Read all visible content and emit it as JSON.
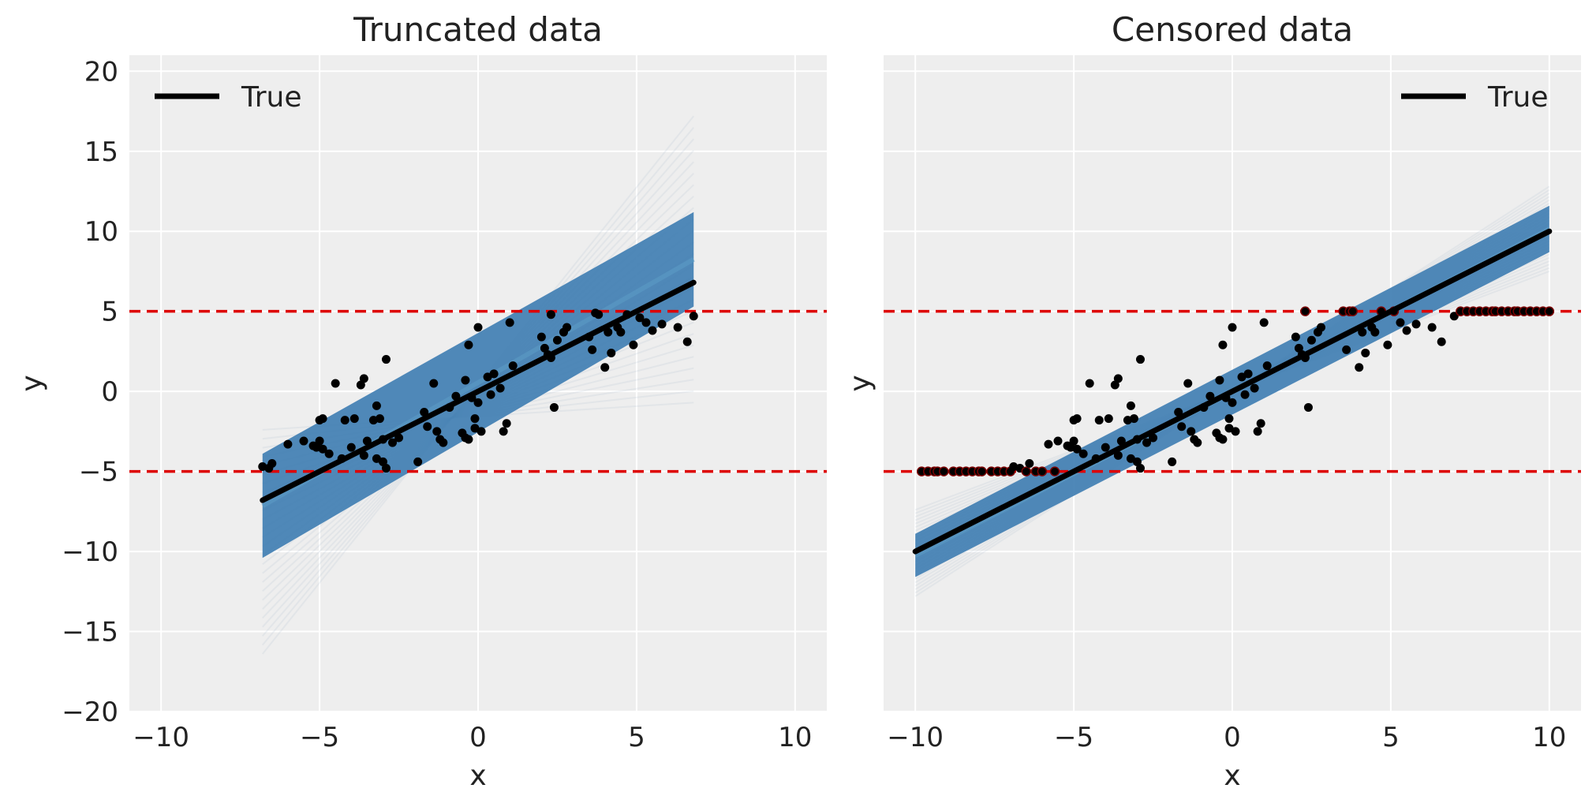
{
  "colors": {
    "panel_bg": "#eeeeee",
    "grid": "#ffffff",
    "posterior_band": "#4682b4",
    "true_line": "#000000",
    "bounds": "#dd0000",
    "points": "#000000"
  },
  "chart_data": [
    {
      "type": "scatter",
      "title": "Truncated data",
      "xlabel": "x",
      "ylabel": "y",
      "xlim": [
        -11,
        11
      ],
      "ylim": [
        -20,
        21
      ],
      "xticks": [
        -10,
        -5,
        0,
        5,
        10
      ],
      "yticks": [
        -20,
        -15,
        -10,
        -5,
        0,
        5,
        10,
        15,
        20
      ],
      "xtick_labels": [
        "−10",
        "−5",
        "0",
        "5",
        "10"
      ],
      "ytick_labels": [
        "−20",
        "−15",
        "−10",
        "−5",
        "0",
        "5",
        "10",
        "15",
        "20"
      ],
      "grid": true,
      "legend": {
        "position": "top-left",
        "entries": [
          "True"
        ]
      },
      "bounds": [
        5,
        -5
      ],
      "true_line": {
        "name": "True",
        "x": [
          -6.8,
          6.8
        ],
        "y": [
          -6.8,
          6.8
        ]
      },
      "posterior_band": {
        "x": [
          -6.8,
          6.8
        ],
        "upper_left": -3.9,
        "lower_left": -10.4,
        "upper_right": 11.2,
        "lower_right": 5.3
      },
      "points": {
        "x": [
          -6.8,
          -6.6,
          -6.5,
          -6.0,
          -5.5,
          -5.2,
          -5.0,
          -5.0,
          -4.9,
          -5.1,
          -4.9,
          -4.7,
          -4.5,
          -4.3,
          -4.2,
          -4.0,
          -3.9,
          -3.7,
          -3.6,
          -3.6,
          -3.5,
          -3.3,
          -3.2,
          -3.2,
          -3.1,
          -3.0,
          -3.0,
          -2.9,
          -2.9,
          -2.7,
          -2.5,
          -1.9,
          -1.7,
          -1.6,
          -1.4,
          -1.3,
          -1.2,
          -1.1,
          -0.9,
          -0.7,
          -0.5,
          -0.4,
          -0.4,
          -0.3,
          -0.3,
          -0.2,
          -0.1,
          -0.1,
          0.0,
          0.0,
          0.1,
          0.3,
          0.4,
          0.5,
          0.7,
          0.8,
          0.9,
          1.0,
          1.1,
          2.0,
          2.1,
          2.2,
          2.3,
          2.3,
          2.4,
          2.5,
          2.7,
          2.8,
          3.5,
          3.6,
          3.7,
          3.8,
          4.0,
          4.1,
          4.2,
          4.4,
          4.5,
          4.7,
          4.9,
          5.1,
          5.3,
          5.5,
          5.8,
          6.3,
          6.6,
          6.8
        ],
        "y": [
          -4.7,
          -4.8,
          -4.5,
          -3.3,
          -3.1,
          -3.4,
          -1.8,
          -3.1,
          -1.7,
          -3.5,
          -3.6,
          -3.9,
          0.5,
          -4.2,
          -1.8,
          -3.5,
          -1.7,
          0.4,
          -4.0,
          0.8,
          -3.1,
          -1.8,
          -4.2,
          -0.9,
          -1.7,
          -4.4,
          -3.0,
          2.0,
          -4.8,
          -3.2,
          -2.9,
          -4.4,
          -1.3,
          -2.2,
          0.5,
          -2.5,
          -3.0,
          -3.2,
          -1.0,
          -0.3,
          -2.6,
          -2.9,
          0.7,
          -3.0,
          2.9,
          -0.4,
          -1.7,
          -2.3,
          -0.7,
          4.0,
          -2.5,
          0.9,
          -0.2,
          1.1,
          0.2,
          -2.5,
          -2.0,
          4.3,
          1.6,
          3.4,
          2.7,
          2.3,
          2.1,
          4.8,
          -1.0,
          3.2,
          3.7,
          4.0,
          3.4,
          2.6,
          4.9,
          4.8,
          1.5,
          3.7,
          2.4,
          4.0,
          3.7,
          4.8,
          2.9,
          4.6,
          4.3,
          3.8,
          4.2,
          4.0,
          3.1,
          4.7
        ]
      }
    },
    {
      "type": "scatter",
      "title": "Censored data",
      "xlabel": "x",
      "ylabel": "y",
      "xlim": [
        -11,
        11
      ],
      "ylim": [
        -20,
        21
      ],
      "xticks": [
        -10,
        -5,
        0,
        5,
        10
      ],
      "yticks": [
        -20,
        -15,
        -10,
        -5,
        0,
        5,
        10,
        15,
        20
      ],
      "xtick_labels": [
        "−10",
        "−5",
        "0",
        "5",
        "10"
      ],
      "grid": true,
      "legend": {
        "position": "top-right",
        "entries": [
          "True"
        ]
      },
      "bounds": [
        5,
        -5
      ],
      "true_line": {
        "name": "True",
        "x": [
          -10,
          10
        ],
        "y": [
          -10,
          10
        ]
      },
      "posterior_band": {
        "x": [
          -10,
          10
        ],
        "upper_left": -8.9,
        "lower_left": -11.6,
        "upper_right": 11.6,
        "lower_right": 8.7
      },
      "points": {
        "x": [
          -9.8,
          -9.6,
          -9.4,
          -9.3,
          -9.1,
          -8.8,
          -8.6,
          -8.4,
          -8.2,
          -8.0,
          -7.9,
          -7.6,
          -7.4,
          -7.2,
          -7.0,
          -6.9,
          -6.7,
          -6.5,
          -6.4,
          -6.2,
          -6.0,
          -5.8,
          -5.6,
          -5.5,
          -5.2,
          -5.0,
          -5.0,
          -4.9,
          -5.1,
          -4.9,
          -4.7,
          -4.5,
          -4.3,
          -4.2,
          -4.0,
          -3.9,
          -3.7,
          -3.6,
          -3.6,
          -3.5,
          -3.3,
          -3.2,
          -3.2,
          -3.1,
          -3.0,
          -3.0,
          -2.9,
          -2.9,
          -2.7,
          -2.5,
          -1.9,
          -1.7,
          -1.6,
          -1.4,
          -1.3,
          -1.2,
          -1.1,
          -0.9,
          -0.7,
          -0.5,
          -0.4,
          -0.4,
          -0.3,
          -0.3,
          -0.2,
          -0.1,
          -0.1,
          0.0,
          0.0,
          0.1,
          0.3,
          0.4,
          0.5,
          0.7,
          0.8,
          0.9,
          1.0,
          1.1,
          2.0,
          2.1,
          2.2,
          2.3,
          2.3,
          2.4,
          2.5,
          2.7,
          2.8,
          3.5,
          3.6,
          3.7,
          3.8,
          4.0,
          4.1,
          4.2,
          4.4,
          4.5,
          4.7,
          4.9,
          5.1,
          5.3,
          5.5,
          5.8,
          6.3,
          6.6,
          7.0,
          7.2,
          7.4,
          7.6,
          7.8,
          8.0,
          8.2,
          8.3,
          8.5,
          8.7,
          8.9,
          9.0,
          9.2,
          9.4,
          9.6,
          9.8,
          10.0
        ],
        "y": [
          -5.0,
          -5.0,
          -5.0,
          -5.0,
          -5.0,
          -5.0,
          -5.0,
          -5.0,
          -5.0,
          -5.0,
          -5.0,
          -5.0,
          -5.0,
          -5.0,
          -5.0,
          -4.7,
          -4.8,
          -5.0,
          -4.5,
          -5.0,
          -5.0,
          -3.3,
          -5.0,
          -3.1,
          -3.4,
          -1.8,
          -3.1,
          -1.7,
          -3.5,
          -3.6,
          -3.9,
          0.5,
          -4.2,
          -1.8,
          -3.5,
          -1.7,
          0.4,
          -4.0,
          0.8,
          -3.1,
          -1.8,
          -4.2,
          -0.9,
          -1.7,
          -4.4,
          -3.0,
          2.0,
          -4.8,
          -3.2,
          -2.9,
          -4.4,
          -1.3,
          -2.2,
          0.5,
          -2.5,
          -3.0,
          -3.2,
          -1.0,
          -0.3,
          -2.6,
          -2.9,
          0.7,
          -3.0,
          2.9,
          -0.4,
          -1.7,
          -2.3,
          -0.7,
          4.0,
          -2.5,
          0.9,
          -0.2,
          1.1,
          0.2,
          -2.5,
          -2.0,
          4.3,
          1.6,
          3.4,
          2.7,
          2.3,
          2.1,
          5.0,
          -1.0,
          3.2,
          3.7,
          4.0,
          5.0,
          2.6,
          5.0,
          5.0,
          1.5,
          3.7,
          2.4,
          4.0,
          3.7,
          5.0,
          2.9,
          5.0,
          4.3,
          3.8,
          4.2,
          4.0,
          3.1,
          4.7,
          5.0,
          5.0,
          5.0,
          5.0,
          5.0,
          5.0,
          5.0,
          5.0,
          5.0,
          5.0,
          5.0,
          5.0,
          5.0,
          5.0,
          5.0,
          5.0
        ]
      }
    }
  ]
}
